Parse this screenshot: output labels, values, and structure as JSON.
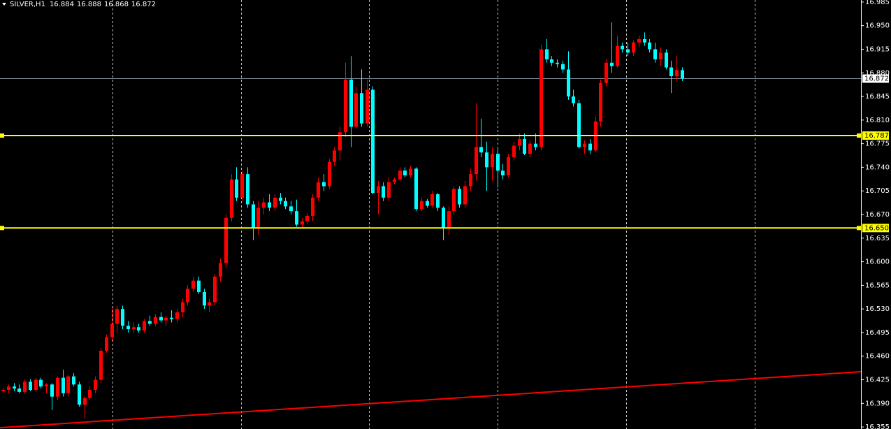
{
  "chart_data": {
    "type": "candlestick",
    "symbol": "SILVER,H1",
    "up_color": "#ff0000",
    "down_color": "#00ffff",
    "ylim": [
      16.352,
      16.988
    ],
    "yticks": [
      16.985,
      {
        "value": 16.95,
        "label": "16.950"
      },
      16.915,
      {
        "value": 16.88,
        "label": "16.880"
      },
      16.845,
      {
        "value": 16.81,
        "label": "16.810"
      },
      16.775,
      {
        "value": 16.74,
        "label": "16.740"
      },
      16.705,
      {
        "value": 16.67,
        "label": "16.670"
      },
      16.635,
      {
        "value": 16.6,
        "label": "16.600"
      },
      16.565,
      {
        "value": 16.53,
        "label": "16.530"
      },
      16.495,
      {
        "value": 16.46,
        "label": "16.460"
      },
      16.425,
      {
        "value": 16.39,
        "label": "16.390"
      },
      16.355
    ],
    "grid": true,
    "levels": [
      {
        "value": 16.787,
        "color": "#ffff00"
      },
      {
        "value": 16.65,
        "label": "16.650",
        "color": "#ffff00"
      }
    ],
    "current_price": {
      "value": 16.872,
      "color": "#7f8c99"
    },
    "trendline": {
      "values": [
        16.354,
        16.437
      ],
      "color": "#ff0000"
    },
    "candles": [
      [
        16.408,
        16.413,
        16.405,
        16.41
      ],
      [
        16.41,
        16.418,
        16.405,
        16.415
      ],
      [
        16.415,
        16.42,
        16.408,
        16.412
      ],
      [
        16.412,
        16.418,
        16.405,
        16.407
      ],
      [
        16.407,
        16.425,
        16.404,
        16.422
      ],
      [
        16.422,
        16.426,
        16.408,
        16.41
      ],
      [
        16.41,
        16.428,
        16.407,
        16.425
      ],
      [
        16.425,
        16.428,
        16.412,
        16.415
      ],
      [
        16.415,
        16.42,
        16.405,
        16.418
      ],
      [
        16.418,
        16.42,
        16.38,
        16.4
      ],
      [
        16.4,
        16.43,
        16.395,
        16.428
      ],
      [
        16.428,
        16.44,
        16.4,
        16.405
      ],
      [
        16.405,
        16.432,
        16.4,
        16.43
      ],
      [
        16.43,
        16.435,
        16.415,
        16.418
      ],
      [
        16.418,
        16.422,
        16.385,
        16.388
      ],
      [
        16.388,
        16.4,
        16.368,
        16.398
      ],
      [
        16.398,
        16.415,
        16.395,
        16.41
      ],
      [
        16.41,
        16.43,
        16.405,
        16.425
      ],
      [
        16.425,
        16.472,
        16.42,
        16.468
      ],
      [
        16.468,
        16.492,
        16.465,
        16.488
      ],
      [
        16.488,
        16.532,
        16.482,
        16.508
      ],
      [
        16.508,
        16.535,
        16.495,
        16.53
      ],
      [
        16.53,
        16.535,
        16.5,
        16.505
      ],
      [
        16.505,
        16.512,
        16.495,
        16.5
      ],
      [
        16.5,
        16.51,
        16.495,
        16.503
      ],
      [
        16.503,
        16.508,
        16.495,
        16.498
      ],
      [
        16.498,
        16.515,
        16.495,
        16.512
      ],
      [
        16.512,
        16.52,
        16.505,
        16.508
      ],
      [
        16.508,
        16.522,
        16.505,
        16.518
      ],
      [
        16.518,
        16.525,
        16.51,
        16.513
      ],
      [
        16.513,
        16.52,
        16.505,
        16.517
      ],
      [
        16.517,
        16.528,
        16.51,
        16.515
      ],
      [
        16.515,
        16.53,
        16.51,
        16.525
      ],
      [
        16.525,
        16.545,
        16.518,
        16.54
      ],
      [
        16.54,
        16.565,
        16.535,
        16.56
      ],
      [
        16.56,
        16.578,
        16.555,
        16.572
      ],
      [
        16.572,
        16.578,
        16.552,
        16.555
      ],
      [
        16.555,
        16.56,
        16.53,
        16.535
      ],
      [
        16.535,
        16.545,
        16.525,
        16.54
      ],
      [
        16.54,
        16.582,
        16.535,
        16.578
      ],
      [
        16.578,
        16.605,
        16.57,
        16.598
      ],
      [
        16.598,
        16.67,
        16.59,
        16.665
      ],
      [
        16.665,
        16.73,
        16.66,
        16.722
      ],
      [
        16.722,
        16.74,
        16.69,
        16.695
      ],
      [
        16.695,
        16.735,
        16.69,
        16.73
      ],
      [
        16.73,
        16.74,
        16.68,
        16.685
      ],
      [
        16.685,
        16.69,
        16.632,
        16.65
      ],
      [
        16.65,
        16.69,
        16.64,
        16.68
      ],
      [
        16.68,
        16.695,
        16.67,
        16.688
      ],
      [
        16.688,
        16.7,
        16.675,
        16.68
      ],
      [
        16.68,
        16.7,
        16.675,
        16.695
      ],
      [
        16.695,
        16.702,
        16.685,
        16.69
      ],
      [
        16.69,
        16.695,
        16.678,
        16.682
      ],
      [
        16.682,
        16.69,
        16.67,
        16.675
      ],
      [
        16.675,
        16.692,
        16.652,
        16.655
      ],
      [
        16.655,
        16.665,
        16.65,
        16.66
      ],
      [
        16.66,
        16.672,
        16.655,
        16.668
      ],
      [
        16.668,
        16.7,
        16.66,
        16.695
      ],
      [
        16.695,
        16.725,
        16.69,
        16.718
      ],
      [
        16.718,
        16.73,
        16.705,
        16.712
      ],
      [
        16.712,
        16.752,
        16.708,
        16.748
      ],
      [
        16.748,
        16.77,
        16.742,
        16.765
      ],
      [
        16.765,
        16.8,
        16.75,
        16.792
      ],
      [
        16.792,
        16.895,
        16.785,
        16.87
      ],
      [
        16.87,
        16.905,
        16.77,
        16.8
      ],
      [
        16.8,
        16.86,
        16.798,
        16.85
      ],
      [
        16.85,
        16.885,
        16.8,
        16.805
      ],
      [
        16.805,
        16.87,
        16.8,
        16.855
      ],
      [
        16.855,
        16.86,
        16.7,
        16.702
      ],
      [
        16.702,
        16.72,
        16.67,
        16.712
      ],
      [
        16.712,
        16.718,
        16.69,
        16.695
      ],
      [
        16.695,
        16.725,
        16.69,
        16.718
      ],
      [
        16.718,
        16.725,
        16.715,
        16.722
      ],
      [
        16.722,
        16.74,
        16.72,
        16.735
      ],
      [
        16.735,
        16.74,
        16.725,
        16.728
      ],
      [
        16.728,
        16.742,
        16.725,
        16.738
      ],
      [
        16.738,
        16.74,
        16.675,
        16.678
      ],
      [
        16.678,
        16.695,
        16.675,
        16.69
      ],
      [
        16.69,
        16.693,
        16.68,
        16.683
      ],
      [
        16.683,
        16.705,
        16.68,
        16.7
      ],
      [
        16.7,
        16.702,
        16.675,
        16.68
      ],
      [
        16.68,
        16.682,
        16.632,
        16.65
      ],
      [
        16.65,
        16.682,
        16.64,
        16.675
      ],
      [
        16.675,
        16.712,
        16.67,
        16.708
      ],
      [
        16.708,
        16.712,
        16.68,
        16.685
      ],
      [
        16.685,
        16.72,
        16.68,
        16.712
      ],
      [
        16.712,
        16.738,
        16.705,
        16.73
      ],
      [
        16.73,
        16.835,
        16.72,
        16.77
      ],
      [
        16.77,
        16.812,
        16.755,
        16.762
      ],
      [
        16.762,
        16.778,
        16.705,
        16.74
      ],
      [
        16.74,
        16.77,
        16.72,
        16.76
      ],
      [
        16.76,
        16.77,
        16.71,
        16.735
      ],
      [
        16.735,
        16.745,
        16.722,
        16.728
      ],
      [
        16.728,
        16.76,
        16.725,
        16.755
      ],
      [
        16.755,
        16.778,
        16.75,
        16.772
      ],
      [
        16.772,
        16.79,
        16.765,
        16.782
      ],
      [
        16.782,
        16.79,
        16.758,
        16.76
      ],
      [
        16.76,
        16.78,
        16.755,
        16.775
      ],
      [
        16.775,
        16.79,
        16.765,
        16.77
      ],
      [
        16.77,
        16.922,
        16.765,
        16.915
      ],
      [
        16.915,
        16.93,
        16.895,
        16.9
      ],
      [
        16.9,
        16.905,
        16.89,
        16.895
      ],
      [
        16.895,
        16.9,
        16.888,
        16.893
      ],
      [
        16.893,
        16.898,
        16.88,
        16.885
      ],
      [
        16.885,
        16.912,
        16.84,
        16.845
      ],
      [
        16.845,
        16.855,
        16.83,
        16.835
      ],
      [
        16.835,
        16.84,
        16.768,
        16.77
      ],
      [
        16.77,
        16.78,
        16.76,
        16.775
      ],
      [
        16.775,
        16.782,
        16.76,
        16.765
      ],
      [
        16.765,
        16.815,
        16.762,
        16.808
      ],
      [
        16.808,
        16.87,
        16.8,
        16.865
      ],
      [
        16.865,
        16.9,
        16.86,
        16.895
      ],
      [
        16.895,
        16.955,
        16.88,
        16.89
      ],
      [
        16.89,
        16.935,
        16.888,
        16.92
      ],
      [
        16.92,
        16.925,
        16.91,
        16.915
      ],
      [
        16.915,
        16.925,
        16.905,
        16.91
      ],
      [
        16.91,
        16.928,
        16.905,
        16.925
      ],
      [
        16.925,
        16.935,
        16.918,
        16.93
      ],
      [
        16.93,
        16.94,
        16.92,
        16.925
      ],
      [
        16.925,
        16.93,
        16.91,
        16.915
      ],
      [
        16.915,
        16.925,
        16.895,
        16.9
      ],
      [
        16.9,
        16.918,
        16.89,
        16.91
      ],
      [
        16.91,
        16.915,
        16.885,
        16.888
      ],
      [
        16.888,
        16.898,
        16.85,
        16.875
      ],
      [
        16.875,
        16.905,
        16.868,
        16.884
      ],
      [
        16.884,
        16.888,
        16.868,
        16.872
      ]
    ]
  }
}
